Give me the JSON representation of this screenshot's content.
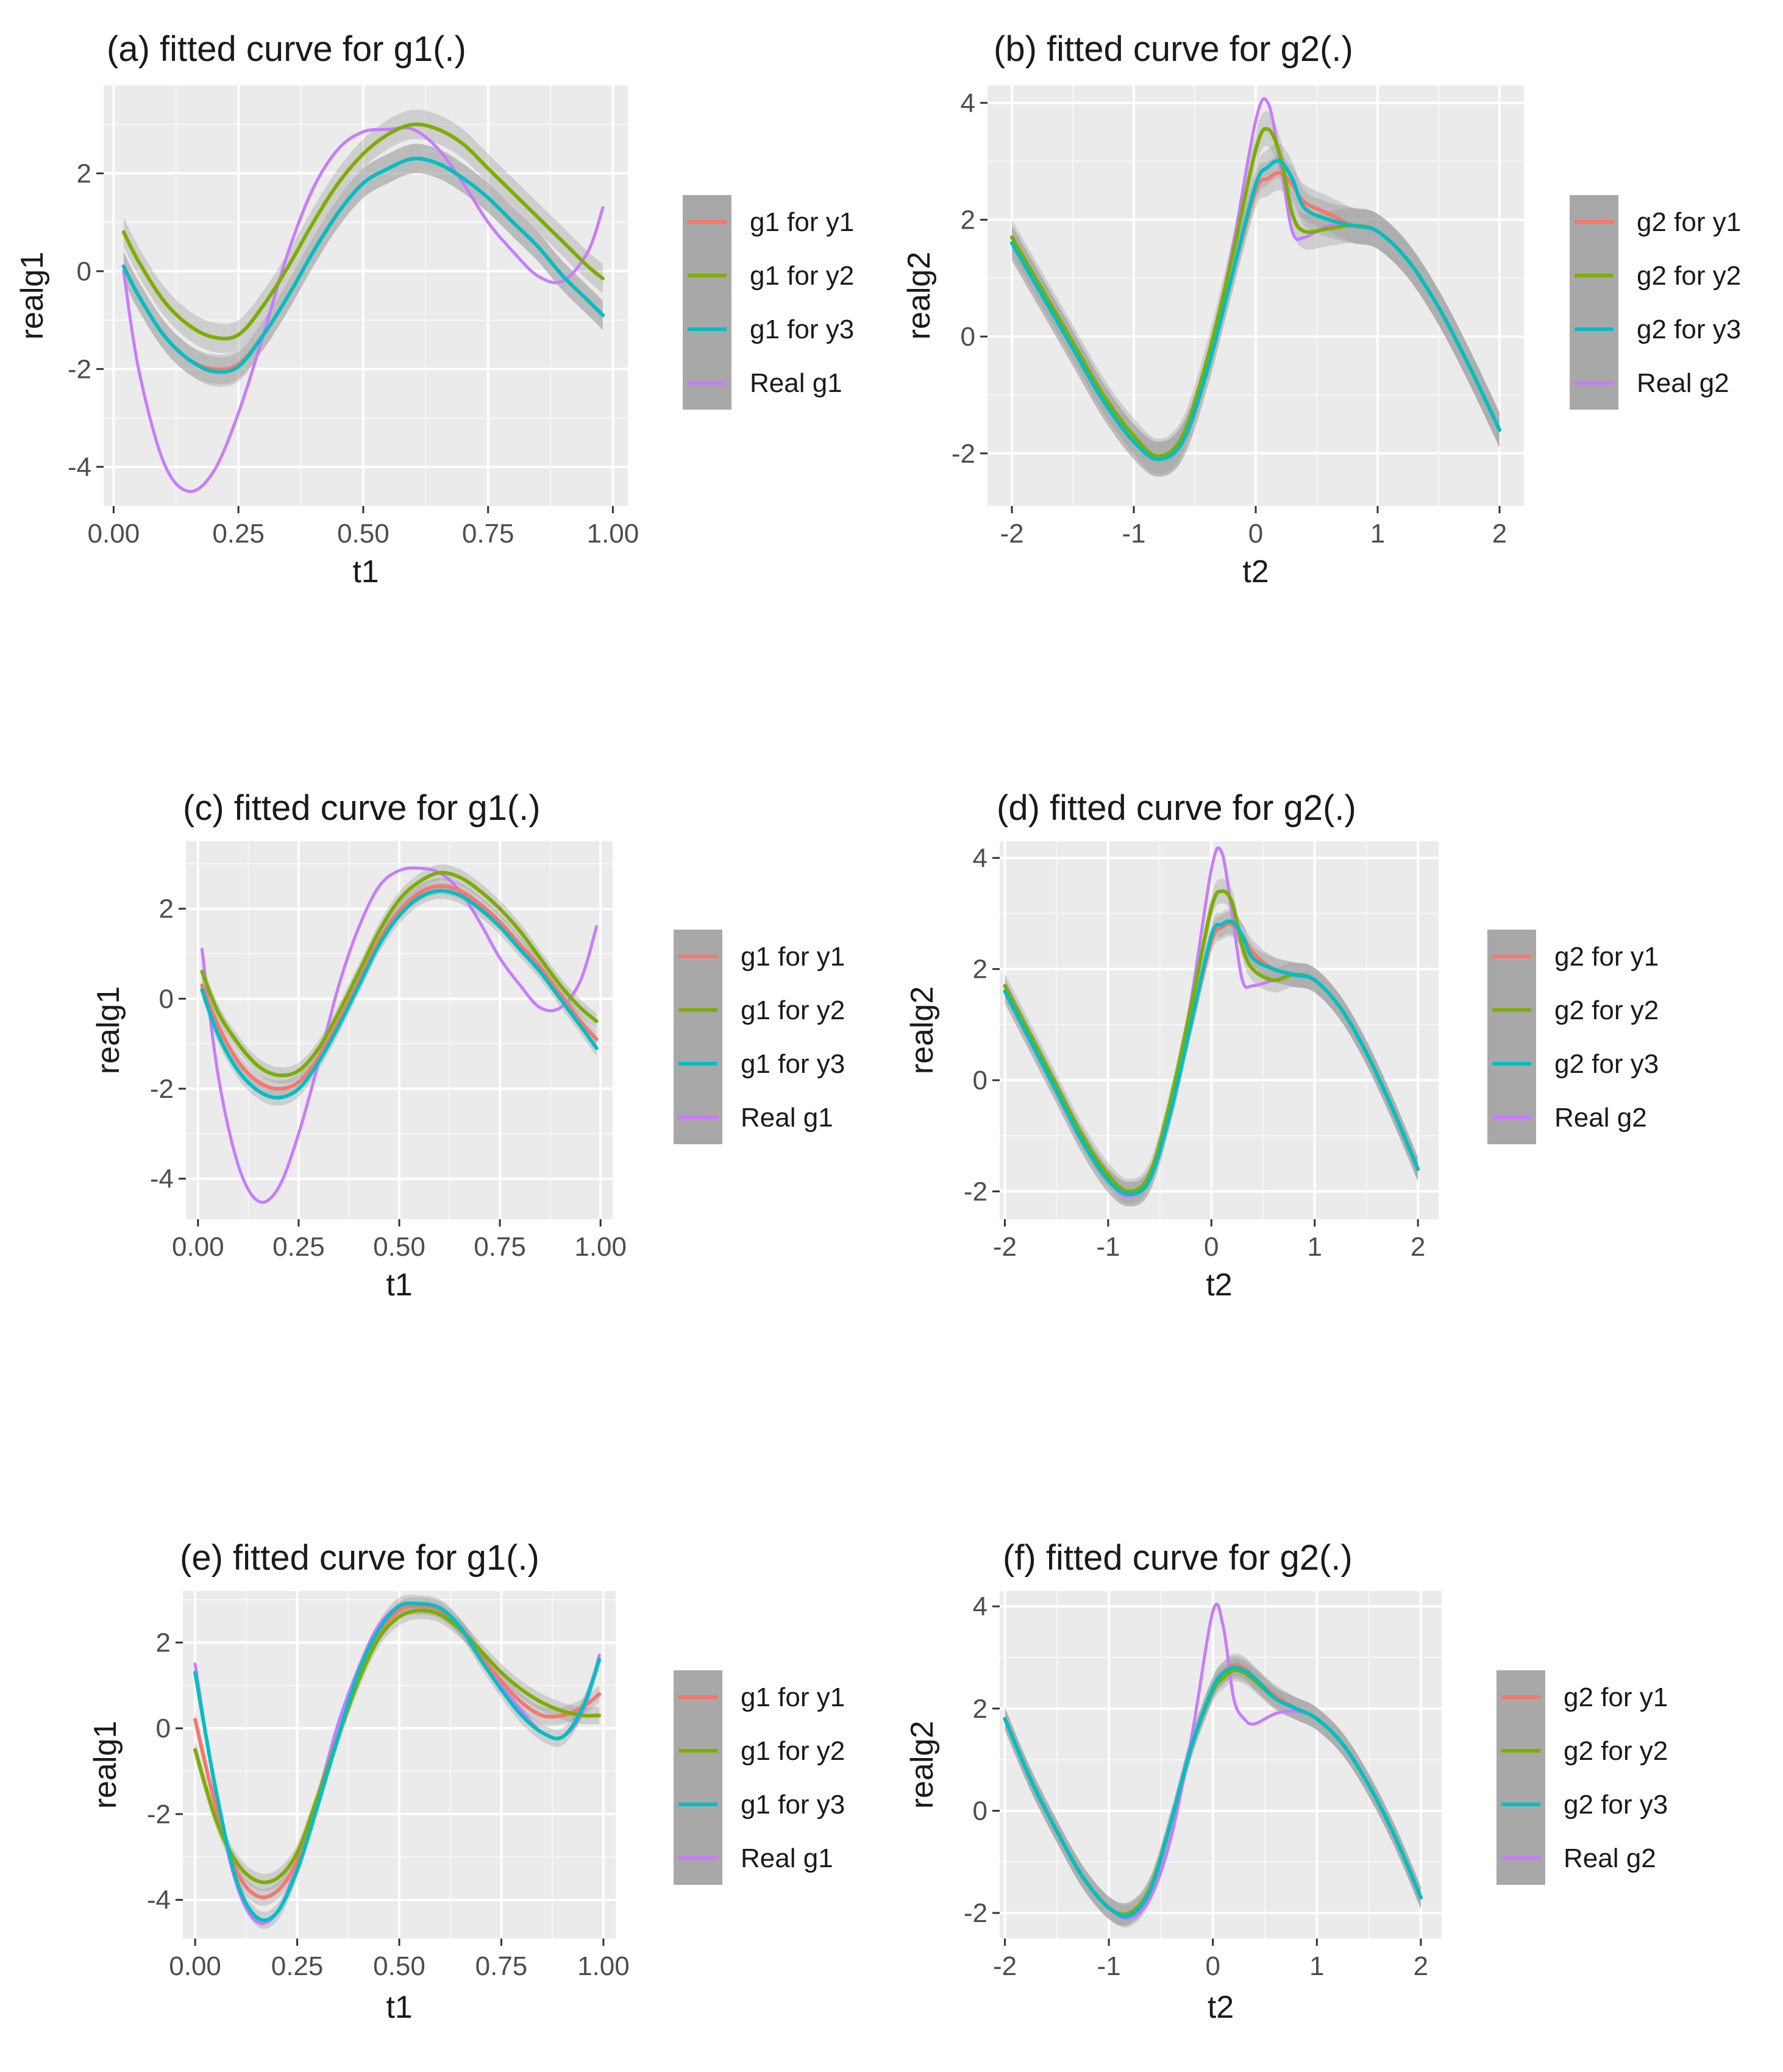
{
  "figure": {
    "colors": {
      "y1": "#F8766D",
      "y2": "#7CAE00",
      "y3": "#00BFC4",
      "real": "#C77CFF",
      "panel": "#EBEBEB",
      "band": "#999999"
    }
  },
  "chart_data": [
    {
      "type": "line",
      "title": "(a) fitted curve for g1(.)",
      "xlabel": "t1",
      "ylabel": "realg1",
      "xlim": [
        -0.02,
        1.03
      ],
      "ylim": [
        -4.8,
        3.8
      ],
      "xticks": [
        0.0,
        0.25,
        0.5,
        0.75,
        1.0
      ],
      "xtick_labels": [
        "0.00",
        "0.25",
        "0.50",
        "0.75",
        "1.00"
      ],
      "yticks": [
        -4,
        -2,
        0,
        2
      ],
      "ytick_labels": [
        "-4",
        "-2",
        "0",
        "2"
      ],
      "legend_position": "right",
      "legend": [
        "g1 for y1",
        "g1 for y2",
        "g1 for y3",
        "Real g1"
      ],
      "band_halfwidth": 0.3,
      "x": [
        0.02,
        0.05,
        0.1,
        0.15,
        0.2,
        0.25,
        0.3,
        0.35,
        0.4,
        0.45,
        0.5,
        0.55,
        0.6,
        0.65,
        0.7,
        0.75,
        0.8,
        0.85,
        0.9,
        0.95,
        0.98
      ],
      "series": [
        {
          "name": "g1 for y1",
          "values": [
            0.1,
            -0.5,
            -1.3,
            -1.8,
            -2.0,
            -1.9,
            -1.3,
            -0.5,
            0.4,
            1.2,
            1.8,
            2.1,
            2.3,
            2.2,
            1.9,
            1.5,
            1.0,
            0.5,
            -0.1,
            -0.6,
            -0.9
          ]
        },
        {
          "name": "g1 for y2",
          "values": [
            0.8,
            0.2,
            -0.6,
            -1.1,
            -1.35,
            -1.3,
            -0.7,
            0.1,
            1.0,
            1.8,
            2.4,
            2.8,
            3.0,
            2.9,
            2.6,
            2.1,
            1.6,
            1.1,
            0.6,
            0.1,
            -0.15
          ]
        },
        {
          "name": "g1 for y3",
          "values": [
            0.1,
            -0.5,
            -1.3,
            -1.8,
            -2.05,
            -1.95,
            -1.3,
            -0.5,
            0.4,
            1.2,
            1.8,
            2.1,
            2.3,
            2.2,
            1.9,
            1.5,
            1.0,
            0.5,
            -0.1,
            -0.6,
            -0.9
          ]
        },
        {
          "name": "Real g1",
          "values": [
            0.0,
            -2.0,
            -3.9,
            -4.5,
            -4.1,
            -2.9,
            -1.3,
            0.4,
            1.7,
            2.5,
            2.85,
            2.9,
            2.9,
            2.5,
            1.8,
            1.0,
            0.4,
            -0.1,
            -0.2,
            0.4,
            1.3
          ]
        }
      ]
    },
    {
      "type": "line",
      "title": "(b) fitted curve for g2(.)",
      "xlabel": "t2",
      "ylabel": "realg2",
      "xlim": [
        -2.2,
        2.2
      ],
      "ylim": [
        -2.9,
        4.3
      ],
      "xticks": [
        -2,
        -1,
        0,
        1,
        2
      ],
      "xtick_labels": [
        "-2",
        "-1",
        "0",
        "1",
        "2"
      ],
      "yticks": [
        -2,
        0,
        2,
        4
      ],
      "ytick_labels": [
        "-2",
        "0",
        "2",
        "4"
      ],
      "legend_position": "right",
      "legend": [
        "g2 for y1",
        "g2 for y2",
        "g2 for y3",
        "Real g2"
      ],
      "band_halfwidth": 0.3,
      "x": [
        -2.0,
        -1.75,
        -1.5,
        -1.25,
        -1.0,
        -0.8,
        -0.6,
        -0.4,
        -0.2,
        0.0,
        0.1,
        0.2,
        0.3,
        0.4,
        0.6,
        0.8,
        1.0,
        1.25,
        1.5,
        1.75,
        2.0
      ],
      "series": [
        {
          "name": "g2 for y1",
          "values": [
            1.6,
            0.7,
            -0.2,
            -1.1,
            -1.8,
            -2.1,
            -1.8,
            -0.6,
            1.0,
            2.5,
            2.7,
            2.8,
            2.6,
            2.3,
            2.1,
            1.9,
            1.8,
            1.3,
            0.5,
            -0.5,
            -1.6
          ]
        },
        {
          "name": "g2 for y2",
          "values": [
            1.7,
            0.8,
            -0.1,
            -1.0,
            -1.7,
            -2.05,
            -1.7,
            -0.4,
            1.3,
            3.2,
            3.55,
            3.1,
            2.1,
            1.8,
            1.85,
            1.9,
            1.8,
            1.3,
            0.5,
            -0.5,
            -1.6
          ]
        },
        {
          "name": "g2 for y3",
          "values": [
            1.6,
            0.7,
            -0.2,
            -1.1,
            -1.8,
            -2.1,
            -1.8,
            -0.6,
            1.0,
            2.6,
            2.9,
            3.0,
            2.7,
            2.2,
            2.0,
            1.9,
            1.8,
            1.3,
            0.5,
            -0.5,
            -1.6
          ]
        },
        {
          "name": "Real g2",
          "values": [
            1.6,
            0.7,
            -0.2,
            -1.1,
            -1.8,
            -2.1,
            -1.7,
            -0.5,
            1.4,
            3.7,
            4.0,
            3.0,
            1.8,
            1.7,
            1.9,
            1.9,
            1.8,
            1.3,
            0.5,
            -0.5,
            -1.6
          ]
        }
      ]
    },
    {
      "type": "line",
      "title": "(c) fitted curve for g1(.)",
      "xlabel": "t1",
      "ylabel": "realg1",
      "xlim": [
        -0.03,
        1.03
      ],
      "ylim": [
        -4.9,
        3.5
      ],
      "xticks": [
        0.0,
        0.25,
        0.5,
        0.75,
        1.0
      ],
      "xtick_labels": [
        "0.00",
        "0.25",
        "0.50",
        "0.75",
        "1.00"
      ],
      "yticks": [
        -4,
        -2,
        0,
        2
      ],
      "ytick_labels": [
        "-4",
        "-2",
        "0",
        "2"
      ],
      "legend_position": "right",
      "legend": [
        "g1 for y1",
        "g1 for y2",
        "g1 for y3",
        "Real g1"
      ],
      "band_halfwidth": 0.18,
      "x": [
        0.01,
        0.05,
        0.1,
        0.15,
        0.2,
        0.25,
        0.3,
        0.35,
        0.4,
        0.45,
        0.5,
        0.55,
        0.6,
        0.65,
        0.7,
        0.75,
        0.8,
        0.85,
        0.9,
        0.95,
        0.99
      ],
      "series": [
        {
          "name": "g1 for y1",
          "values": [
            0.3,
            -0.6,
            -1.4,
            -1.85,
            -2.0,
            -1.85,
            -1.3,
            -0.5,
            0.4,
            1.3,
            1.95,
            2.35,
            2.5,
            2.4,
            2.1,
            1.7,
            1.2,
            0.7,
            0.1,
            -0.5,
            -0.9
          ]
        },
        {
          "name": "g1 for y2",
          "values": [
            0.6,
            -0.3,
            -1.0,
            -1.5,
            -1.7,
            -1.6,
            -1.1,
            -0.3,
            0.6,
            1.5,
            2.2,
            2.6,
            2.8,
            2.7,
            2.4,
            2.0,
            1.5,
            0.9,
            0.3,
            -0.2,
            -0.5
          ]
        },
        {
          "name": "g1 for y3",
          "values": [
            0.2,
            -0.8,
            -1.6,
            -2.05,
            -2.2,
            -2.0,
            -1.4,
            -0.6,
            0.3,
            1.2,
            1.85,
            2.25,
            2.4,
            2.3,
            2.0,
            1.6,
            1.1,
            0.6,
            0.0,
            -0.6,
            -1.1
          ]
        },
        {
          "name": "Real g1",
          "values": [
            1.1,
            -1.7,
            -3.7,
            -4.5,
            -4.2,
            -3.0,
            -1.4,
            0.3,
            1.6,
            2.5,
            2.85,
            2.9,
            2.8,
            2.4,
            1.7,
            0.9,
            0.3,
            -0.2,
            -0.2,
            0.4,
            1.6
          ]
        }
      ]
    },
    {
      "type": "line",
      "title": "(d) fitted curve for g2(.)",
      "xlabel": "t2",
      "ylabel": "realg2",
      "xlim": [
        -2.05,
        2.2
      ],
      "ylim": [
        -2.5,
        4.3
      ],
      "xticks": [
        -2,
        -1,
        0,
        1,
        2
      ],
      "xtick_labels": [
        "-2",
        "-1",
        "0",
        "1",
        "2"
      ],
      "yticks": [
        -2,
        0,
        2,
        4
      ],
      "ytick_labels": [
        "-2",
        "0",
        "2",
        "4"
      ],
      "legend_position": "right",
      "legend": [
        "g2 for y1",
        "g2 for y2",
        "g2 for y3",
        "Real g2"
      ],
      "band_halfwidth": 0.22,
      "x": [
        -2.0,
        -1.75,
        -1.5,
        -1.25,
        -1.0,
        -0.8,
        -0.6,
        -0.4,
        -0.2,
        0.0,
        0.1,
        0.2,
        0.3,
        0.4,
        0.6,
        0.8,
        1.0,
        1.25,
        1.5,
        1.75,
        2.0
      ],
      "series": [
        {
          "name": "g2 for y1",
          "values": [
            1.6,
            0.7,
            -0.2,
            -1.1,
            -1.8,
            -2.05,
            -1.8,
            -0.6,
            1.0,
            2.5,
            2.75,
            2.8,
            2.6,
            2.3,
            2.0,
            1.9,
            1.8,
            1.3,
            0.5,
            -0.5,
            -1.6
          ]
        },
        {
          "name": "g2 for y2",
          "values": [
            1.7,
            0.8,
            -0.1,
            -1.0,
            -1.7,
            -2.0,
            -1.7,
            -0.4,
            1.3,
            3.1,
            3.4,
            3.2,
            2.4,
            2.0,
            1.8,
            1.9,
            1.8,
            1.3,
            0.5,
            -0.5,
            -1.6
          ]
        },
        {
          "name": "g2 for y3",
          "values": [
            1.6,
            0.7,
            -0.2,
            -1.1,
            -1.8,
            -2.05,
            -1.8,
            -0.6,
            1.0,
            2.6,
            2.8,
            2.85,
            2.6,
            2.2,
            2.0,
            1.9,
            1.8,
            1.3,
            0.5,
            -0.5,
            -1.6
          ]
        },
        {
          "name": "Real g2",
          "values": [
            1.6,
            0.7,
            -0.2,
            -1.1,
            -1.8,
            -2.1,
            -1.7,
            -0.5,
            1.4,
            3.8,
            4.1,
            3.0,
            1.8,
            1.7,
            1.8,
            1.9,
            1.8,
            1.3,
            0.5,
            -0.5,
            -1.6
          ]
        }
      ]
    },
    {
      "type": "line",
      "title": "(e) fitted curve for g1(.)",
      "xlabel": "t1",
      "ylabel": "realg1",
      "xlim": [
        -0.03,
        1.03
      ],
      "ylim": [
        -4.9,
        3.2
      ],
      "xticks": [
        0.0,
        0.25,
        0.5,
        0.75,
        1.0
      ],
      "xtick_labels": [
        "0.00",
        "0.25",
        "0.50",
        "0.75",
        "1.00"
      ],
      "yticks": [
        -4,
        -2,
        0,
        2
      ],
      "ytick_labels": [
        "-4",
        "-2",
        "0",
        "2"
      ],
      "legend_position": "right",
      "legend": [
        "g1 for y1",
        "g1 for y2",
        "g1 for y3",
        "Real g1"
      ],
      "band_halfwidth": 0.2,
      "x": [
        0.0,
        0.05,
        0.1,
        0.15,
        0.2,
        0.25,
        0.3,
        0.35,
        0.4,
        0.45,
        0.5,
        0.55,
        0.6,
        0.65,
        0.7,
        0.75,
        0.8,
        0.85,
        0.9,
        0.95,
        0.99
      ],
      "series": [
        {
          "name": "g1 for y1",
          "values": [
            0.2,
            -1.8,
            -3.3,
            -3.9,
            -3.8,
            -3.1,
            -1.7,
            -0.2,
            1.2,
            2.2,
            2.75,
            2.85,
            2.75,
            2.35,
            1.7,
            1.1,
            0.6,
            0.3,
            0.3,
            0.5,
            0.8
          ]
        },
        {
          "name": "g1 for y2",
          "values": [
            -0.5,
            -2.1,
            -3.1,
            -3.55,
            -3.5,
            -2.9,
            -1.6,
            -0.2,
            1.1,
            2.1,
            2.6,
            2.75,
            2.65,
            2.3,
            1.8,
            1.3,
            0.9,
            0.6,
            0.4,
            0.3,
            0.3
          ]
        },
        {
          "name": "g1 for y3",
          "values": [
            1.3,
            -1.4,
            -3.5,
            -4.4,
            -4.3,
            -3.3,
            -1.8,
            -0.2,
            1.3,
            2.3,
            2.85,
            2.9,
            2.8,
            2.35,
            1.6,
            0.9,
            0.3,
            -0.1,
            -0.2,
            0.5,
            1.6
          ]
        },
        {
          "name": "Real g1",
          "values": [
            1.5,
            -1.5,
            -3.6,
            -4.5,
            -4.3,
            -3.2,
            -1.6,
            0.1,
            1.4,
            2.4,
            2.85,
            2.9,
            2.8,
            2.35,
            1.7,
            1.0,
            0.4,
            -0.1,
            -0.2,
            0.4,
            1.7
          ]
        }
      ]
    },
    {
      "type": "line",
      "title": "(f) fitted curve for g2(.)",
      "xlabel": "t2",
      "ylabel": "realg2",
      "xlim": [
        -2.05,
        2.2
      ],
      "ylim": [
        -2.5,
        4.3
      ],
      "xticks": [
        -2,
        -1,
        0,
        1,
        2
      ],
      "xtick_labels": [
        "-2",
        "-1",
        "0",
        "1",
        "2"
      ],
      "yticks": [
        -2,
        0,
        2,
        4
      ],
      "ytick_labels": [
        "-2",
        "0",
        "2",
        "4"
      ],
      "legend_position": "right",
      "legend": [
        "g2 for y1",
        "g2 for y2",
        "g2 for y3",
        "Real g2"
      ],
      "band_halfwidth": 0.22,
      "x": [
        -2.0,
        -1.75,
        -1.5,
        -1.25,
        -1.0,
        -0.8,
        -0.6,
        -0.4,
        -0.2,
        0.0,
        0.1,
        0.2,
        0.3,
        0.4,
        0.6,
        0.8,
        1.0,
        1.25,
        1.5,
        1.75,
        2.0
      ],
      "series": [
        {
          "name": "g2 for y1",
          "values": [
            1.8,
            0.6,
            -0.4,
            -1.3,
            -1.9,
            -2.0,
            -1.5,
            -0.2,
            1.3,
            2.4,
            2.7,
            2.85,
            2.8,
            2.6,
            2.25,
            2.0,
            1.8,
            1.3,
            0.5,
            -0.5,
            -1.7
          ]
        },
        {
          "name": "g2 for y2",
          "values": [
            1.8,
            0.6,
            -0.4,
            -1.3,
            -1.9,
            -2.0,
            -1.5,
            -0.2,
            1.3,
            2.35,
            2.6,
            2.75,
            2.7,
            2.55,
            2.2,
            2.0,
            1.8,
            1.3,
            0.5,
            -0.5,
            -1.7
          ]
        },
        {
          "name": "g2 for y3",
          "values": [
            1.8,
            0.6,
            -0.4,
            -1.3,
            -1.9,
            -2.05,
            -1.55,
            -0.2,
            1.3,
            2.4,
            2.7,
            2.8,
            2.75,
            2.6,
            2.2,
            2.0,
            1.8,
            1.3,
            0.5,
            -0.5,
            -1.7
          ]
        },
        {
          "name": "Real g2",
          "values": [
            1.8,
            0.6,
            -0.4,
            -1.3,
            -1.9,
            -2.1,
            -1.7,
            -0.5,
            1.5,
            3.9,
            3.6,
            2.2,
            1.8,
            1.7,
            1.9,
            1.95,
            1.8,
            1.3,
            0.5,
            -0.5,
            -1.7
          ]
        }
      ]
    }
  ]
}
